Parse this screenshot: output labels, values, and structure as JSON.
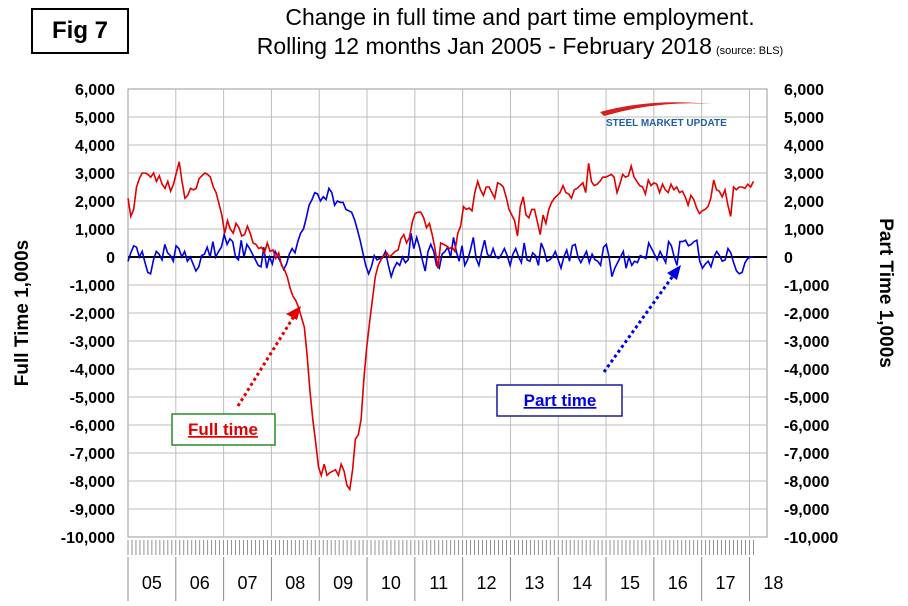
{
  "figure_label": "Fig 7",
  "title_line1": "Change in full time and part time employment.",
  "title_line2": "Rolling 12 months Jan 2005 - February 2018",
  "source": "(source: BLS)",
  "logo_text": "STEEL MARKET UPDATE",
  "colors": {
    "full_time": "#e00000",
    "part_time": "#0000e0",
    "grid": "#bdbdbd",
    "zero_line": "#000000",
    "full_time_box_border": "#2a8a2a",
    "part_time_box_border": "#1a1a9a",
    "logo_blue": "#1f5fa8",
    "logo_red": "#d42020"
  },
  "annotations": {
    "full_time": "Full time",
    "part_time": "Part time"
  },
  "chart_data": {
    "type": "line",
    "ylabel_left": "Full Time 1,000s",
    "ylabel_right": "Part Time 1,000s",
    "ylim": [
      -10000,
      6000
    ],
    "yticks": [
      6000,
      5000,
      4000,
      3000,
      2000,
      1000,
      0,
      -1000,
      -2000,
      -3000,
      -4000,
      -5000,
      -6000,
      -7000,
      -8000,
      -9000,
      -10000
    ],
    "ytick_labels": [
      "6,000",
      "5,000",
      "4,000",
      "3,000",
      "2,000",
      "1,000",
      "0",
      "-1,000",
      "-2,000",
      "-3,000",
      "-4,000",
      "-5,000",
      "-6,000",
      "-7,000",
      "-8,000",
      "-9,000",
      "-10,000"
    ],
    "year_labels": [
      "05",
      "06",
      "07",
      "08",
      "09",
      "10",
      "11",
      "12",
      "13",
      "14",
      "15",
      "16",
      "17",
      "18"
    ],
    "x_start": "2005-01",
    "x_end": "2018-02",
    "grid": true,
    "series": [
      {
        "name": "Full time",
        "values": [
          2100,
          1450,
          1700,
          2500,
          2800,
          3000,
          3000,
          2950,
          2850,
          3000,
          2700,
          2900,
          2600,
          2450,
          2700,
          2350,
          2600,
          3000,
          3400,
          2700,
          2100,
          2200,
          2450,
          2400,
          2450,
          2800,
          2900,
          3000,
          2950,
          2850,
          2500,
          2300,
          1900,
          1500,
          850,
          1300,
          1000,
          850,
          1200,
          1050,
          750,
          800,
          1100,
          850,
          500,
          450,
          300,
          350,
          150,
          500,
          200,
          250,
          -50,
          150,
          -300,
          -450,
          -700,
          -1100,
          -1400,
          -1550,
          -1800,
          -2150,
          -2500,
          -3500,
          -4800,
          -5800,
          -6600,
          -7500,
          -7800,
          -7400,
          -7800,
          -7700,
          -7650,
          -7600,
          -7800,
          -7400,
          -7650,
          -8150,
          -8300,
          -7600,
          -6500,
          -6350,
          -5800,
          -4300,
          -3200,
          -2300,
          -1500,
          -700,
          -300,
          -100,
          50,
          150,
          0,
          100,
          200,
          250,
          650,
          800,
          500,
          700,
          1250,
          1550,
          1600,
          1600,
          1400,
          1050,
          1200,
          800,
          300,
          -400,
          500,
          450,
          400,
          300,
          350,
          200,
          850,
          1100,
          1800,
          1700,
          1750,
          1650,
          2300,
          2700,
          2400,
          2200,
          2500,
          2500,
          2300,
          2100,
          2650,
          2600,
          2500,
          2150,
          1700,
          1500,
          1300,
          750,
          1800,
          2150,
          1500,
          1400,
          1700,
          1700,
          1250,
          800,
          1500,
          1200,
          1700,
          1950,
          2100,
          2200,
          2300,
          2550,
          2300,
          2250,
          2100,
          2400,
          2450,
          2550,
          2650,
          2300,
          3350,
          2700,
          2550,
          2600,
          2700,
          2850,
          2850,
          2900,
          2950,
          2850,
          2300,
          2600,
          2950,
          2850,
          2900,
          3250,
          2850,
          2700,
          2550,
          2500,
          2250,
          2750,
          2550,
          2650,
          2600,
          2300,
          2600,
          2400,
          2300,
          2600,
          2400,
          2500,
          2300,
          2350,
          2150,
          1850,
          2200,
          2050,
          1750,
          1550,
          1650,
          1700,
          1800,
          2100,
          2750,
          2400,
          2350,
          2150,
          2400,
          1850,
          1450,
          2500,
          2400,
          2500,
          2500,
          2450,
          2600,
          2500,
          2700
        ]
      },
      {
        "name": "Part time",
        "values": [
          -150,
          150,
          400,
          350,
          0,
          200,
          -200,
          -550,
          -600,
          -100,
          200,
          100,
          -100,
          450,
          150,
          50,
          -150,
          400,
          300,
          0,
          200,
          -150,
          0,
          -250,
          -500,
          -350,
          50,
          100,
          350,
          0,
          550,
          0,
          200,
          350,
          800,
          450,
          650,
          550,
          0,
          -100,
          600,
          0,
          450,
          300,
          100,
          -100,
          -300,
          -350,
          350,
          -400,
          0,
          -250,
          200,
          0,
          -200,
          -450,
          -250,
          100,
          300,
          150,
          550,
          850,
          1000,
          1400,
          1850,
          2050,
          2300,
          2250,
          2000,
          2150,
          2050,
          2450,
          2300,
          1850,
          2000,
          1950,
          1950,
          1700,
          1650,
          1600,
          1350,
          1000,
          600,
          150,
          -300,
          -600,
          -350,
          50,
          -100,
          -50,
          0,
          200,
          -300,
          -700,
          -400,
          -200,
          -300,
          0,
          -200,
          -100,
          850,
          300,
          700,
          350,
          -100,
          -500,
          200,
          450,
          200,
          -300,
          -400,
          100,
          200,
          350,
          0,
          700,
          200,
          -150,
          400,
          -300,
          -100,
          250,
          700,
          -50,
          -300,
          200,
          600,
          100,
          0,
          300,
          0,
          -50,
          100,
          300,
          50,
          -300,
          100,
          300,
          0,
          -200,
          500,
          -100,
          -150,
          150,
          50,
          -300,
          500,
          250,
          -150,
          -100,
          0,
          200,
          -100,
          -400,
          0,
          250,
          -150,
          400,
          450,
          0,
          -200,
          0,
          200,
          -200,
          100,
          -100,
          -150,
          -300,
          350,
          450,
          0,
          -700,
          -400,
          -200,
          0,
          200,
          -400,
          0,
          -300,
          -150,
          -200,
          50,
          0,
          -50,
          500,
          300,
          100,
          -100,
          200,
          0,
          -200,
          550,
          400,
          0,
          -300,
          550,
          550,
          600,
          400,
          450,
          550,
          600,
          -150,
          -400,
          -250,
          -150,
          -350,
          0,
          200,
          50,
          -150,
          -100,
          300,
          150,
          -200,
          -500,
          -600,
          -550,
          -200,
          -50,
          0,
          0
        ]
      }
    ]
  }
}
